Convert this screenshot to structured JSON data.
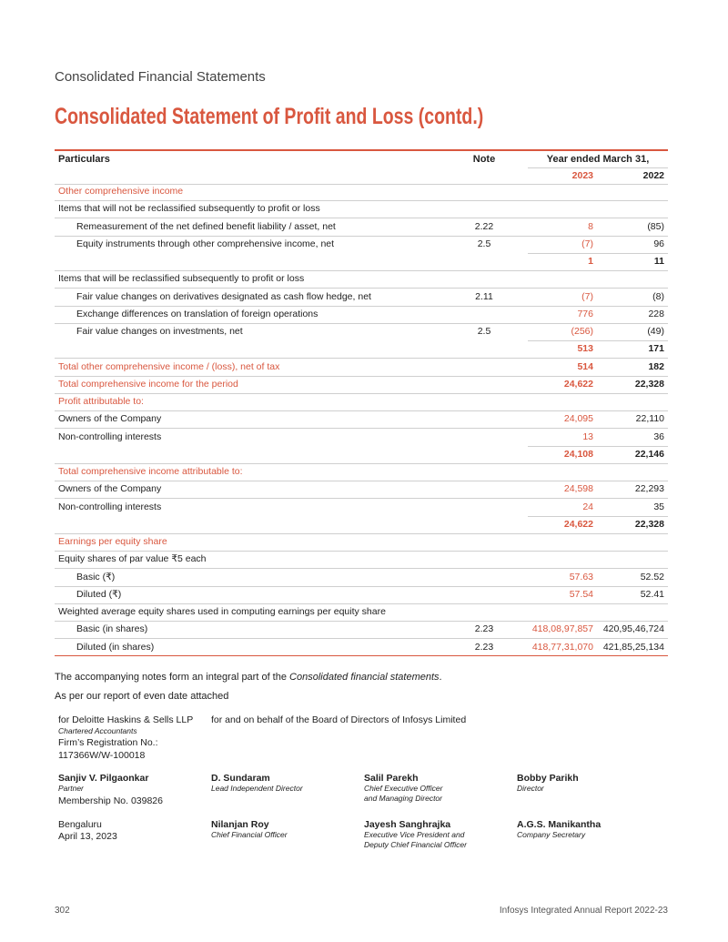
{
  "header": {
    "section": "Consolidated Financial Statements",
    "title": "Consolidated Statement of Profit and Loss (contd.)"
  },
  "table": {
    "columns": {
      "particulars": "Particulars",
      "note": "Note",
      "period": "Year ended March 31,",
      "years": [
        "2023",
        "2022"
      ]
    },
    "rows": [
      [
        "Other comprehensive income",
        null,
        null,
        null
      ],
      [
        "Items that will not be reclassified subsequently to profit or loss",
        null,
        null,
        null
      ],
      [
        "Remeasurement of the net defined benefit liability / asset, net",
        "2.22",
        "8",
        "(85)"
      ],
      [
        "Equity instruments through other comprehensive income, net",
        "2.5",
        "(7)",
        "96"
      ],
      [
        null,
        null,
        "1",
        "11"
      ],
      [
        "Items that will be reclassified subsequently to profit or loss",
        null,
        null,
        null
      ],
      [
        "Fair value changes on derivatives designated as cash flow hedge, net",
        "2.11",
        "(7)",
        "(8)"
      ],
      [
        "Exchange differences on translation of foreign operations",
        null,
        "776",
        "228"
      ],
      [
        "Fair value changes on investments, net",
        "2.5",
        "(256)",
        "(49)"
      ],
      [
        null,
        null,
        "513",
        "171"
      ],
      [
        "Total other comprehensive income / (loss), net of tax",
        null,
        "514",
        "182"
      ],
      [
        "Total comprehensive income for the period",
        null,
        "24,622",
        "22,328"
      ],
      [
        "Profit attributable to:",
        null,
        null,
        null
      ],
      [
        "Owners of the Company",
        null,
        "24,095",
        "22,110"
      ],
      [
        "Non-controlling interests",
        null,
        "13",
        "36"
      ],
      [
        null,
        null,
        "24,108",
        "22,146"
      ],
      [
        "Total comprehensive income attributable to:",
        null,
        null,
        null
      ],
      [
        "Owners of the Company",
        null,
        "24,598",
        "22,293"
      ],
      [
        "Non-controlling interests",
        null,
        "24",
        "35"
      ],
      [
        null,
        null,
        "24,622",
        "22,328"
      ],
      [
        "Earnings per equity share",
        null,
        null,
        null
      ],
      [
        "Equity shares of par value ₹5 each",
        null,
        null,
        null
      ],
      [
        "Basic (₹)",
        null,
        "57.63",
        "52.52"
      ],
      [
        "Diluted (₹)",
        null,
        "57.54",
        "52.41"
      ],
      [
        "Weighted average equity shares used in computing earnings per equity share",
        null,
        null,
        null
      ],
      [
        "Basic (in shares)",
        "2.23",
        "418,08,97,857",
        "420,95,46,724"
      ],
      [
        "Diluted (in shares)",
        "2.23",
        "418,77,31,070",
        "421,85,25,134"
      ]
    ]
  },
  "notes": {
    "accompanying": [
      "The accompanying notes form an integral part of the ",
      "Consolidated financial statements",
      "."
    ],
    "report": "As per our report of even date attached"
  },
  "auditor": {
    "firm": "for Deloitte Haskins & Sells LLP",
    "type": "Chartered Accountants",
    "registration": [
      "Firm’s Registration No.:",
      "117366W/W-100018"
    ]
  },
  "board": "for and on behalf of the Board of Directors of Infosys Limited",
  "signatories": [
    {
      "name": "Sanjiv V. Pilgaonkar",
      "role": [
        "Partner"
      ],
      "membership": "Membership No. 039826"
    },
    {
      "name": "D. Sundaram",
      "role": [
        "Lead Independent Director"
      ]
    },
    {
      "name": "Salil Parekh",
      "role": [
        "Chief Executive Officer",
        "and Managing Director"
      ]
    },
    {
      "name": "Bobby Parikh",
      "role": [
        "Director"
      ]
    },
    {
      "name": "Nilanjan Roy",
      "role": [
        "Chief Financial Officer"
      ]
    },
    {
      "name": "Jayesh Sanghrajka",
      "role": [
        "Executive Vice President and",
        "Deputy Chief Financial Officer"
      ]
    },
    {
      "name": "A.G.S. Manikantha",
      "role": [
        "Company Secretary"
      ]
    }
  ],
  "place": "Bengaluru",
  "date": "April 13, 2023",
  "footer": {
    "page": "302",
    "report": "Infosys Integrated Annual Report 2022-23"
  }
}
